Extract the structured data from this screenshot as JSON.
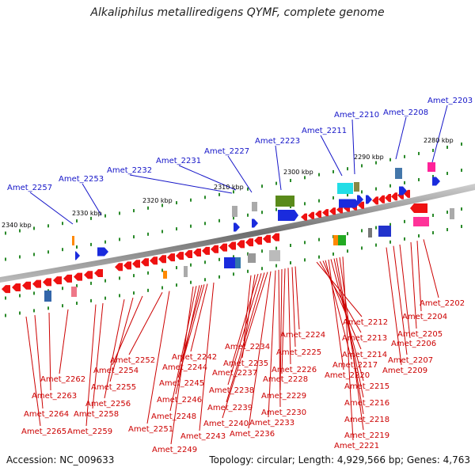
{
  "title": "Alkaliphilus metalliredigens QYMF, complete genome",
  "footer": {
    "accession": "Accession: NC_009633",
    "topology": "Topology: circular; Length: 4,929,566 bp; Genes: 4,763"
  },
  "kbp_ticks": [
    "2280 kbp",
    "2290 kbp",
    "2300 kbp",
    "2310 kbp",
    "2320 kbp",
    "2330 kbp",
    "2340 kbp"
  ],
  "labels_forward": [
    "Amet_2203",
    "Amet_2208",
    "Amet_2210",
    "Amet_2211",
    "Amet_2223",
    "Amet_2227",
    "Amet_2231",
    "Amet_2232",
    "Amet_2253",
    "Amet_2257"
  ],
  "labels_reverse": [
    "Amet_2202",
    "Amet_2204",
    "Amet_2205",
    "Amet_2206",
    "Amet_2207",
    "Amet_2209",
    "Amet_2212",
    "Amet_2213",
    "Amet_2214",
    "Amet_2217",
    "Amet_2220",
    "Amet_2215",
    "Amet_2216",
    "Amet_2218",
    "Amet_2219",
    "Amet_2221",
    "Amet_2224",
    "Amet_2225",
    "Amet_2226",
    "Amet_2228",
    "Amet_2229",
    "Amet_2230",
    "Amet_2233",
    "Amet_2236",
    "Amet_2234",
    "Amet_2235",
    "Amet_2237",
    "Amet_2238",
    "Amet_2239",
    "Amet_2240",
    "Amet_2242",
    "Amet_2243",
    "Amet_2244",
    "Amet_2245",
    "Amet_2246",
    "Amet_2248",
    "Amet_2249",
    "Amet_2251",
    "Amet_2252",
    "Amet_2254",
    "Amet_2255",
    "Amet_2256",
    "Amet_2258",
    "Amet_2259",
    "Amet_2262",
    "Amet_2263",
    "Amet_2264",
    "Amet_2265"
  ],
  "colors": {
    "forward_label": "#1515c8",
    "reverse_label": "#cc0000",
    "backbone": "#8a8a8a",
    "tick": "#2a8a2a"
  }
}
